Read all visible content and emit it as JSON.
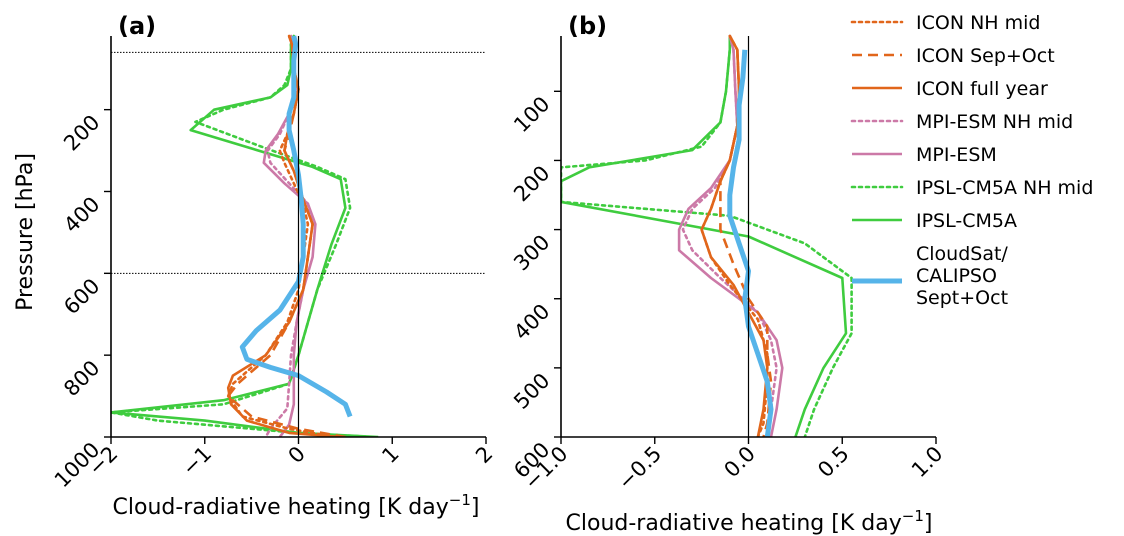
{
  "legend": [
    {
      "key": "icon_nh",
      "label": "ICON NH mid",
      "color": "#e1661b",
      "dash": "3,4",
      "width": 2.6
    },
    {
      "key": "icon_so",
      "label": "ICON Sep+Oct",
      "color": "#e1661b",
      "dash": "10,6",
      "width": 2.6
    },
    {
      "key": "icon_fy",
      "label": "ICON full year",
      "color": "#e1661b",
      "dash": "",
      "width": 2.6
    },
    {
      "key": "mpi_nh",
      "label": "MPI-ESM NH mid",
      "color": "#cc79a7",
      "dash": "3,4",
      "width": 2.6
    },
    {
      "key": "mpi",
      "label": "MPI-ESM",
      "color": "#cc79a7",
      "dash": "",
      "width": 2.6
    },
    {
      "key": "ipsl_nh",
      "label": "IPSL-CM5A NH mid",
      "color": "#3fcc3f",
      "dash": "3,4",
      "width": 2.6
    },
    {
      "key": "ipsl",
      "label": "IPSL-CM5A",
      "color": "#3fcc3f",
      "dash": "",
      "width": 2.6
    },
    {
      "key": "obs",
      "label_lines": [
        "CloudSat/",
        "CALIPSO",
        "Sept+Oct"
      ],
      "color": "#56b4e9",
      "dash": "",
      "width": 5
    }
  ],
  "chart_data": [
    {
      "type": "line",
      "panel_label": "(a)",
      "xlabel": "Cloud-radiative heating [K day",
      "xlabel_sup": "−1",
      "xlabel_end": "]",
      "ylabel": "Pressure [hPa]",
      "xlim": [
        -2,
        2
      ],
      "ylim": [
        1000,
        20
      ],
      "xticks": [
        -2,
        -1,
        0,
        1,
        2
      ],
      "xtick_labels": [
        "−2",
        "−1",
        "0",
        "1",
        "2"
      ],
      "yticks": [
        1000,
        800,
        600,
        400,
        200
      ],
      "ytick_labels": [
        "1000",
        "800",
        "600",
        "400",
        "200"
      ],
      "hlines": [
        60,
        600
      ],
      "vline": 0,
      "series": {
        "icon_nh": [
          [
            -0.1,
            20
          ],
          [
            -0.07,
            40
          ],
          [
            -0.05,
            100
          ],
          [
            0.0,
            150
          ],
          [
            -0.05,
            210
          ],
          [
            -0.12,
            260
          ],
          [
            -0.2,
            300
          ],
          [
            -0.15,
            330
          ],
          [
            -0.05,
            380
          ],
          [
            0.05,
            430
          ],
          [
            0.1,
            480
          ],
          [
            0.05,
            560
          ],
          [
            0.0,
            640
          ],
          [
            -0.12,
            720
          ],
          [
            -0.35,
            800
          ],
          [
            -0.7,
            870
          ],
          [
            -0.75,
            900
          ],
          [
            -0.6,
            950
          ],
          [
            -0.1,
            980
          ],
          [
            0.4,
            1000
          ]
        ],
        "icon_so": [
          [
            -0.1,
            20
          ],
          [
            -0.07,
            40
          ],
          [
            -0.05,
            100
          ],
          [
            0.0,
            150
          ],
          [
            -0.05,
            210
          ],
          [
            -0.1,
            260
          ],
          [
            -0.15,
            300
          ],
          [
            -0.05,
            350
          ],
          [
            0.05,
            420
          ],
          [
            0.15,
            480
          ],
          [
            0.1,
            560
          ],
          [
            0.05,
            640
          ],
          [
            -0.1,
            720
          ],
          [
            -0.3,
            800
          ],
          [
            -0.65,
            870
          ],
          [
            -0.75,
            900
          ],
          [
            -0.5,
            950
          ],
          [
            0.0,
            980
          ],
          [
            0.5,
            1000
          ]
        ],
        "icon_fy": [
          [
            -0.1,
            20
          ],
          [
            -0.07,
            40
          ],
          [
            -0.05,
            100
          ],
          [
            0.0,
            150
          ],
          [
            -0.05,
            210
          ],
          [
            -0.12,
            260
          ],
          [
            -0.15,
            300
          ],
          [
            -0.05,
            350
          ],
          [
            0.05,
            420
          ],
          [
            0.15,
            480
          ],
          [
            0.1,
            560
          ],
          [
            0.05,
            640
          ],
          [
            -0.1,
            720
          ],
          [
            -0.35,
            800
          ],
          [
            -0.7,
            850
          ],
          [
            -0.75,
            880
          ],
          [
            -0.72,
            920
          ],
          [
            -0.55,
            960
          ],
          [
            -0.1,
            990
          ],
          [
            0.45,
            1000
          ]
        ],
        "mpi_nh": [
          [
            -0.08,
            20
          ],
          [
            -0.06,
            40
          ],
          [
            -0.06,
            100
          ],
          [
            -0.03,
            150
          ],
          [
            -0.1,
            210
          ],
          [
            -0.2,
            260
          ],
          [
            -0.33,
            300
          ],
          [
            -0.3,
            330
          ],
          [
            -0.1,
            380
          ],
          [
            0.1,
            430
          ],
          [
            0.15,
            480
          ],
          [
            0.1,
            560
          ],
          [
            0.05,
            640
          ],
          [
            -0.02,
            720
          ],
          [
            -0.08,
            800
          ],
          [
            -0.1,
            870
          ],
          [
            -0.12,
            930
          ],
          [
            -0.3,
            980
          ],
          [
            -0.35,
            1000
          ]
        ],
        "mpi": [
          [
            -0.08,
            20
          ],
          [
            -0.06,
            40
          ],
          [
            -0.06,
            100
          ],
          [
            -0.03,
            150
          ],
          [
            -0.1,
            210
          ],
          [
            -0.22,
            260
          ],
          [
            -0.35,
            300
          ],
          [
            -0.37,
            330
          ],
          [
            -0.15,
            380
          ],
          [
            0.1,
            430
          ],
          [
            0.18,
            480
          ],
          [
            0.15,
            560
          ],
          [
            0.05,
            640
          ],
          [
            -0.02,
            720
          ],
          [
            -0.05,
            800
          ],
          [
            -0.05,
            870
          ],
          [
            -0.05,
            920
          ],
          [
            -0.1,
            970
          ],
          [
            -0.2,
            1000
          ]
        ],
        "ipsl_nh": [
          [
            -0.05,
            20
          ],
          [
            -0.08,
            40
          ],
          [
            -0.08,
            100
          ],
          [
            -0.15,
            140
          ],
          [
            -0.3,
            170
          ],
          [
            -0.8,
            200
          ],
          [
            -1.1,
            230
          ],
          [
            -0.4,
            290
          ],
          [
            0.2,
            340
          ],
          [
            0.5,
            370
          ],
          [
            0.55,
            440
          ],
          [
            0.4,
            530
          ],
          [
            0.2,
            640
          ],
          [
            0.1,
            720
          ],
          [
            0.0,
            800
          ],
          [
            -0.1,
            870
          ],
          [
            -0.8,
            920
          ],
          [
            -2.0,
            940
          ],
          [
            -1.5,
            960
          ],
          [
            0.0,
            990
          ],
          [
            0.8,
            1000
          ]
        ],
        "ipsl": [
          [
            -0.05,
            20
          ],
          [
            -0.08,
            40
          ],
          [
            -0.08,
            100
          ],
          [
            -0.12,
            140
          ],
          [
            -0.3,
            170
          ],
          [
            -0.9,
            200
          ],
          [
            -1.15,
            250
          ],
          [
            0.15,
            340
          ],
          [
            0.45,
            370
          ],
          [
            0.5,
            440
          ],
          [
            0.35,
            530
          ],
          [
            0.2,
            640
          ],
          [
            0.1,
            720
          ],
          [
            0.0,
            800
          ],
          [
            -0.1,
            870
          ],
          [
            -0.8,
            910
          ],
          [
            -2.0,
            940
          ],
          [
            -1.0,
            960
          ],
          [
            0.0,
            990
          ],
          [
            0.85,
            1000
          ]
        ],
        "obs": [
          [
            -0.05,
            20
          ],
          [
            -0.03,
            40
          ],
          [
            -0.05,
            80
          ],
          [
            -0.05,
            120
          ],
          [
            -0.05,
            170
          ],
          [
            -0.1,
            210
          ],
          [
            -0.1,
            250
          ],
          [
            -0.05,
            300
          ],
          [
            0.0,
            360
          ],
          [
            0.03,
            420
          ],
          [
            0.05,
            480
          ],
          [
            0.05,
            560
          ],
          [
            0.0,
            620
          ],
          [
            -0.2,
            690
          ],
          [
            -0.45,
            740
          ],
          [
            -0.6,
            780
          ],
          [
            -0.55,
            810
          ],
          [
            -0.3,
            830
          ],
          [
            0.0,
            850
          ],
          [
            0.3,
            890
          ],
          [
            0.5,
            920
          ],
          [
            0.55,
            950
          ]
        ]
      }
    },
    {
      "type": "line",
      "panel_label": "(b)",
      "xlabel": "Cloud-radiative heating [K day",
      "xlabel_sup": "−1",
      "xlabel_end": "]",
      "xlim": [
        -1.0,
        1.0
      ],
      "ylim": [
        600,
        20
      ],
      "xticks": [
        -1.0,
        -0.5,
        0.0,
        0.5,
        1.0
      ],
      "xtick_labels": [
        "−1.0",
        "−0.5",
        "0.0",
        "0.5",
        "1.0"
      ],
      "yticks": [
        600,
        500,
        400,
        300,
        200,
        100
      ],
      "ytick_labels": [
        "600",
        "500",
        "400",
        "300",
        "200",
        "100"
      ],
      "vline": 0,
      "series": {
        "icon_nh": [
          [
            -0.1,
            20
          ],
          [
            -0.06,
            40
          ],
          [
            -0.05,
            100
          ],
          [
            -0.06,
            150
          ],
          [
            -0.1,
            200
          ],
          [
            -0.15,
            230
          ],
          [
            -0.2,
            270
          ],
          [
            -0.25,
            300
          ],
          [
            -0.2,
            340
          ],
          [
            -0.1,
            380
          ],
          [
            0.05,
            430
          ],
          [
            0.1,
            480
          ],
          [
            0.1,
            520
          ],
          [
            0.08,
            580
          ],
          [
            0.05,
            600
          ]
        ],
        "icon_so": [
          [
            -0.1,
            20
          ],
          [
            -0.06,
            40
          ],
          [
            -0.05,
            100
          ],
          [
            -0.06,
            150
          ],
          [
            -0.1,
            200
          ],
          [
            -0.15,
            230
          ],
          [
            -0.15,
            270
          ],
          [
            -0.15,
            300
          ],
          [
            -0.08,
            350
          ],
          [
            0.0,
            400
          ],
          [
            0.1,
            440
          ],
          [
            0.1,
            480
          ],
          [
            0.12,
            520
          ],
          [
            0.1,
            580
          ],
          [
            0.08,
            600
          ]
        ],
        "icon_fy": [
          [
            -0.1,
            20
          ],
          [
            -0.06,
            40
          ],
          [
            -0.05,
            100
          ],
          [
            -0.06,
            150
          ],
          [
            -0.1,
            200
          ],
          [
            -0.15,
            230
          ],
          [
            -0.2,
            270
          ],
          [
            -0.25,
            300
          ],
          [
            -0.2,
            340
          ],
          [
            -0.08,
            380
          ],
          [
            0.0,
            420
          ],
          [
            0.08,
            460
          ],
          [
            0.1,
            500
          ],
          [
            0.08,
            560
          ],
          [
            0.05,
            600
          ]
        ],
        "mpi_nh": [
          [
            -0.1,
            20
          ],
          [
            -0.08,
            40
          ],
          [
            -0.07,
            100
          ],
          [
            -0.06,
            150
          ],
          [
            -0.1,
            200
          ],
          [
            -0.18,
            240
          ],
          [
            -0.3,
            270
          ],
          [
            -0.35,
            300
          ],
          [
            -0.3,
            330
          ],
          [
            -0.15,
            370
          ],
          [
            0.05,
            420
          ],
          [
            0.12,
            460
          ],
          [
            0.15,
            500
          ],
          [
            0.12,
            560
          ],
          [
            0.1,
            600
          ]
        ],
        "mpi": [
          [
            -0.1,
            20
          ],
          [
            -0.08,
            40
          ],
          [
            -0.07,
            100
          ],
          [
            -0.06,
            150
          ],
          [
            -0.1,
            200
          ],
          [
            -0.2,
            240
          ],
          [
            -0.32,
            270
          ],
          [
            -0.37,
            300
          ],
          [
            -0.37,
            330
          ],
          [
            -0.2,
            370
          ],
          [
            0.05,
            420
          ],
          [
            0.15,
            460
          ],
          [
            0.18,
            500
          ],
          [
            0.15,
            560
          ],
          [
            0.12,
            600
          ]
        ],
        "ipsl_nh": [
          [
            -0.1,
            20
          ],
          [
            -0.1,
            40
          ],
          [
            -0.12,
            100
          ],
          [
            -0.15,
            145
          ],
          [
            -0.25,
            180
          ],
          [
            -0.55,
            200
          ],
          [
            -1.0,
            210
          ],
          [
            -1.0,
            260
          ],
          [
            -0.1,
            280
          ],
          [
            0.3,
            320
          ],
          [
            0.55,
            370
          ],
          [
            0.55,
            450
          ],
          [
            0.45,
            500
          ],
          [
            0.35,
            560
          ],
          [
            0.3,
            600
          ]
        ],
        "ipsl": [
          [
            -0.1,
            20
          ],
          [
            -0.1,
            40
          ],
          [
            -0.12,
            100
          ],
          [
            -0.15,
            145
          ],
          [
            -0.3,
            185
          ],
          [
            -0.85,
            210
          ],
          [
            -1.0,
            230
          ],
          [
            -1.0,
            260
          ],
          [
            0.0,
            310
          ],
          [
            0.5,
            370
          ],
          [
            0.52,
            450
          ],
          [
            0.4,
            500
          ],
          [
            0.3,
            560
          ],
          [
            0.25,
            600
          ]
        ],
        "obs": [
          [
            -0.02,
            40
          ],
          [
            -0.03,
            80
          ],
          [
            -0.05,
            120
          ],
          [
            -0.05,
            170
          ],
          [
            -0.08,
            210
          ],
          [
            -0.1,
            250
          ],
          [
            -0.1,
            280
          ],
          [
            -0.05,
            320
          ],
          [
            0.0,
            360
          ],
          [
            -0.02,
            400
          ],
          [
            0.0,
            440
          ],
          [
            0.05,
            480
          ],
          [
            0.1,
            520
          ],
          [
            0.12,
            560
          ],
          [
            0.1,
            600
          ]
        ]
      }
    }
  ]
}
